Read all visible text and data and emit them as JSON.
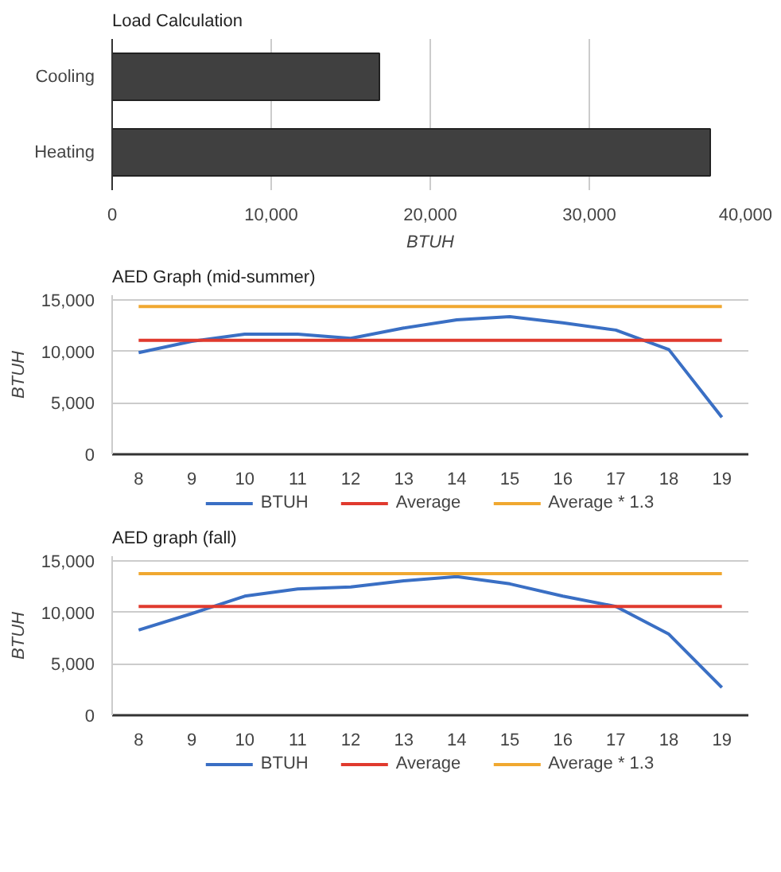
{
  "chart_data": [
    {
      "type": "bar",
      "orientation": "horizontal",
      "title": "Load Calculation",
      "xlabel": "BTUH",
      "categories": [
        "Cooling",
        "Heating"
      ],
      "values": [
        16800,
        37600
      ],
      "color": "#404040",
      "xlim": [
        0,
        40000
      ],
      "xticks": [
        0,
        {
          "value": 10000,
          "label": "10,000"
        },
        {
          "value": 20000,
          "label": "20,000"
        },
        {
          "value": 30000,
          "label": "30,000"
        },
        {
          "value": 40000,
          "label": "40,000"
        }
      ],
      "grid": "x"
    },
    {
      "type": "line",
      "title": "AED Graph (mid-summer)",
      "ylabel": "BTUH",
      "categories": [
        "8",
        "9",
        "10",
        "11",
        "12",
        "13",
        "14",
        "15",
        "16",
        "17",
        "18",
        "19"
      ],
      "ylim": [
        0,
        15500
      ],
      "yticks": [
        0,
        {
          "value": 5000,
          "label": "5,000"
        },
        {
          "value": 10000,
          "label": "10,000"
        },
        {
          "value": 15000,
          "label": "15,000"
        }
      ],
      "grid": "y",
      "legend": "bottom",
      "series": [
        {
          "name": "BTUH",
          "color": "#3a6fc4",
          "values": [
            9900,
            11000,
            11700,
            11700,
            11300,
            12300,
            13100,
            13400,
            12800,
            12100,
            10200,
            3600
          ]
        },
        {
          "name": "Average",
          "color": "#e03a2e",
          "values": [
            11100,
            11100,
            11100,
            11100,
            11100,
            11100,
            11100,
            11100,
            11100,
            11100,
            11100,
            11100
          ]
        },
        {
          "name": "Average * 1.3",
          "color": "#f0a830",
          "values": [
            14400,
            14400,
            14400,
            14400,
            14400,
            14400,
            14400,
            14400,
            14400,
            14400,
            14400,
            14400
          ]
        }
      ]
    },
    {
      "type": "line",
      "title": "AED graph (fall)",
      "ylabel": "BTUH",
      "categories": [
        "8",
        "9",
        "10",
        "11",
        "12",
        "13",
        "14",
        "15",
        "16",
        "17",
        "18",
        "19"
      ],
      "ylim": [
        0,
        15500
      ],
      "yticks": [
        0,
        {
          "value": 5000,
          "label": "5,000"
        },
        {
          "value": 10000,
          "label": "10,000"
        },
        {
          "value": 15000,
          "label": "15,000"
        }
      ],
      "grid": "y",
      "legend": "bottom",
      "series": [
        {
          "name": "BTUH",
          "color": "#3a6fc4",
          "values": [
            8300,
            9900,
            11600,
            12300,
            12500,
            13100,
            13500,
            12800,
            11600,
            10600,
            7900,
            2700
          ]
        },
        {
          "name": "Average",
          "color": "#e03a2e",
          "values": [
            10600,
            10600,
            10600,
            10600,
            10600,
            10600,
            10600,
            10600,
            10600,
            10600,
            10600,
            10600
          ]
        },
        {
          "name": "Average * 1.3",
          "color": "#f0a830",
          "values": [
            13800,
            13800,
            13800,
            13800,
            13800,
            13800,
            13800,
            13800,
            13800,
            13800,
            13800,
            13800
          ]
        }
      ]
    }
  ]
}
